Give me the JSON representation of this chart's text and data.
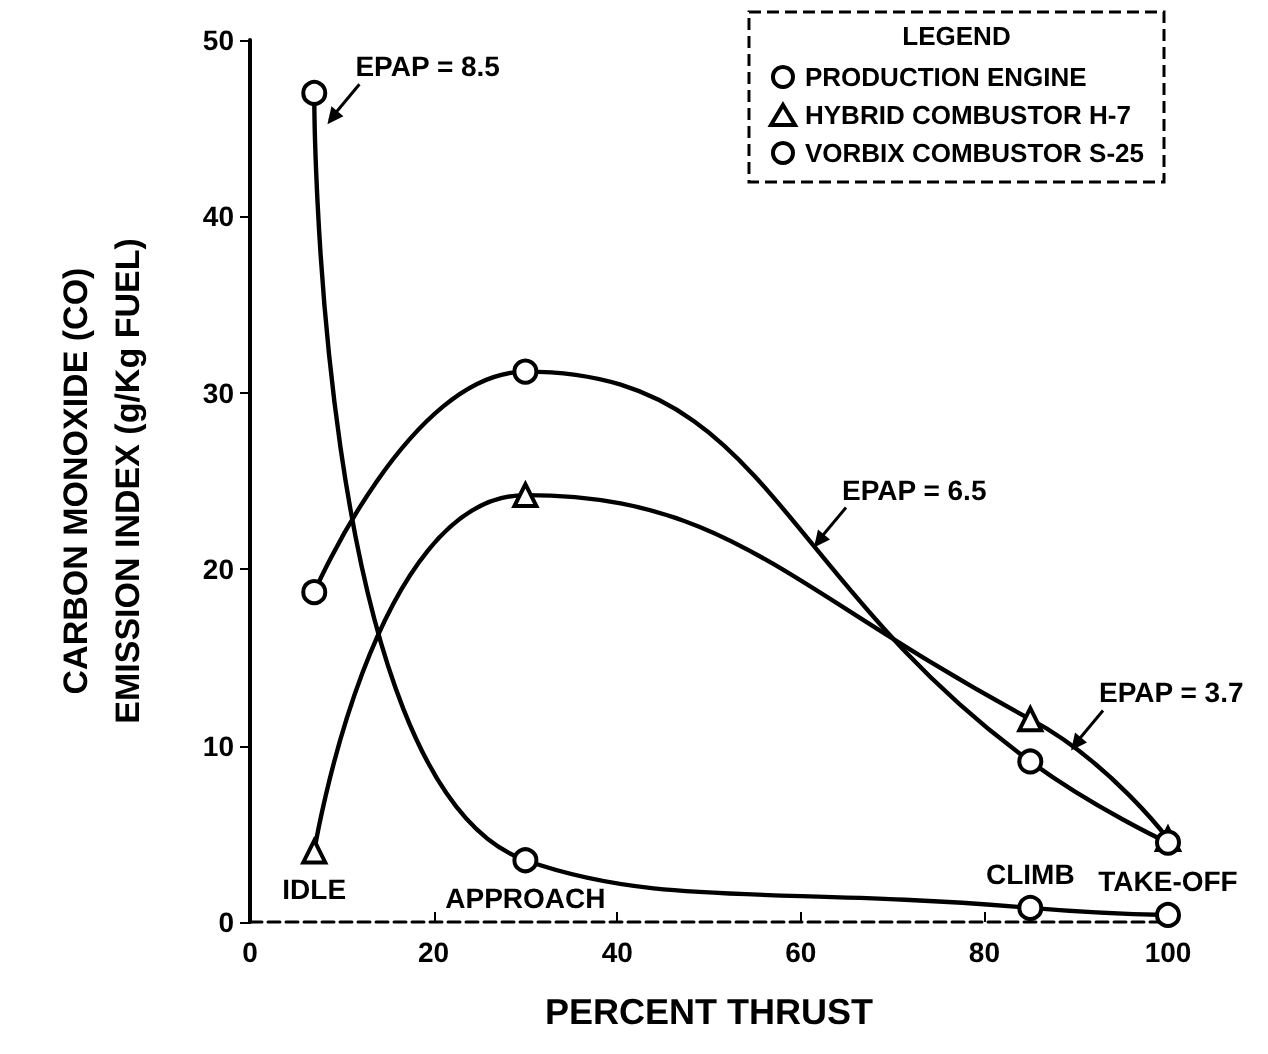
{
  "chart_data": {
    "type": "line",
    "xlabel": "PERCENT THRUST",
    "ylabel": "CARBON MONOXIDE (CO)\nEMISSION INDEX (g/Kg FUEL)",
    "legend_title": "LEGEND",
    "legend": "top right",
    "grid": false,
    "line_style": "solid",
    "xlim": [
      0,
      100
    ],
    "xticks": [
      0,
      20,
      40,
      60,
      80,
      100
    ],
    "ylim": [
      0,
      50
    ],
    "yticks": [
      0,
      10,
      20,
      30,
      40,
      50
    ],
    "series": [
      {
        "name": "PRODUCTION ENGINE",
        "color": "#000000",
        "marker": "circle",
        "x": [
          7,
          30,
          85,
          100
        ],
        "values": [
          47,
          3.5,
          0.8,
          0.4
        ]
      },
      {
        "name": "HYBRID COMBUSTOR H-7",
        "color": "#000000",
        "marker": "triangle",
        "x": [
          7,
          30,
          85,
          100
        ],
        "values": [
          4,
          24.2,
          11.5,
          4.7
        ]
      },
      {
        "name": "VORBIX COMBUSTOR S-25",
        "color": "#000000",
        "marker": "circle",
        "x": [
          7,
          30,
          85,
          100
        ],
        "values": [
          18.7,
          31.2,
          9.1,
          4.5
        ]
      }
    ],
    "annotations": [
      {
        "text": "EPAP = 8.5",
        "x": 8,
        "y": 45
      },
      {
        "text": "EPAP = 6.5",
        "x": 61,
        "y": 21
      },
      {
        "text": "EPAP = 3.7",
        "x": 89,
        "y": 9.5
      },
      {
        "text": "IDLE",
        "x": 7,
        "y": 4
      },
      {
        "text": "APPROACH",
        "x": 30,
        "y": 3.5
      },
      {
        "text": "CLIMB",
        "x": 85,
        "y": 0.8
      },
      {
        "text": "TAKE-OFF",
        "x": 100,
        "y": 0.4
      }
    ]
  }
}
